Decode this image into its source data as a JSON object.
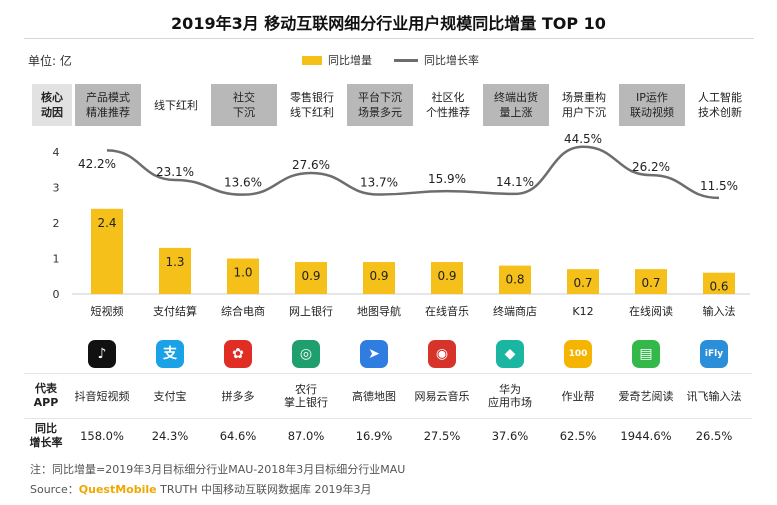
{
  "title": "2019年3月 移动互联网细分行业用户规模同比增量 TOP 10",
  "unit": "单位: 亿",
  "legend": {
    "bar": "同比增量",
    "line": "同比增长率"
  },
  "driver_header": "核心\n动因",
  "drivers": [
    {
      "text": "产品模式\n精准推荐",
      "shaded": true
    },
    {
      "text": "线下红利",
      "shaded": false
    },
    {
      "text": "社交\n下沉",
      "shaded": true
    },
    {
      "text": "零售银行\n线下红利",
      "shaded": false
    },
    {
      "text": "平台下沉\n场景多元",
      "shaded": true
    },
    {
      "text": "社区化\n个性推荐",
      "shaded": false
    },
    {
      "text": "终端出货\n量上涨",
      "shaded": true
    },
    {
      "text": "场景重构\n用户下沉",
      "shaded": false
    },
    {
      "text": "IP运作\n联动视频",
      "shaded": true
    },
    {
      "text": "人工智能\n技术创新",
      "shaded": false
    }
  ],
  "chart_data": {
    "type": "bar",
    "categories": [
      "短视频",
      "支付结算",
      "综合电商",
      "网上银行",
      "地图导航",
      "在线音乐",
      "终端商店",
      "K12",
      "在线阅读",
      "输入法"
    ],
    "series": [
      {
        "name": "同比增量",
        "type": "bar",
        "values": [
          2.4,
          1.3,
          1.0,
          0.9,
          0.9,
          0.9,
          0.8,
          0.7,
          0.7,
          0.6
        ],
        "labels": [
          "2.4",
          "1.3",
          "1.0",
          "0.9",
          "0.9",
          "0.9",
          "0.8",
          "0.7",
          "0.7",
          "0.6"
        ]
      },
      {
        "name": "同比增长率",
        "type": "line",
        "values": [
          42.2,
          23.1,
          13.6,
          27.6,
          13.7,
          15.9,
          14.1,
          44.5,
          26.2,
          11.5
        ],
        "labels": [
          "42.2%",
          "23.1%",
          "13.6%",
          "27.6%",
          "13.7%",
          "15.9%",
          "14.1%",
          "44.5%",
          "26.2%",
          "11.5%"
        ]
      }
    ],
    "yticks": [
      "0",
      "1",
      "2",
      "3",
      "4"
    ],
    "ylim": [
      0,
      4
    ],
    "colors": {
      "bar": "#f6c01b",
      "line": "#6d6d6d"
    }
  },
  "apps_header": "代表\nAPP",
  "growth_header": "同比\n增长率",
  "apps": [
    {
      "icon": "tiktok-icon",
      "glyph": "♪",
      "bg": "#111111",
      "name": "抖音短视频",
      "growth": "158.0%"
    },
    {
      "icon": "alipay-icon",
      "glyph": "支",
      "bg": "#1aa1e6",
      "name": "支付宝",
      "growth": "24.3%"
    },
    {
      "icon": "pinduoduo-icon",
      "glyph": "✿",
      "bg": "#e02e24",
      "name": "拼多多",
      "growth": "64.6%"
    },
    {
      "icon": "abc-bank-icon",
      "glyph": "◎",
      "bg": "#1f9e6e",
      "name": "农行\n掌上银行",
      "growth": "87.0%"
    },
    {
      "icon": "amap-icon",
      "glyph": "➤",
      "bg": "#2f7de1",
      "name": "高德地图",
      "growth": "16.9%"
    },
    {
      "icon": "netease-music-icon",
      "glyph": "◉",
      "bg": "#d6332a",
      "name": "网易云音乐",
      "growth": "27.5%"
    },
    {
      "icon": "huawei-appgallery-icon",
      "glyph": "◆",
      "bg": "#1ab6a1",
      "name": "华为\n应用市场",
      "growth": "37.6%"
    },
    {
      "icon": "zuoyebang-icon",
      "glyph": "100",
      "bg": "#f4b400",
      "name": "作业帮",
      "growth": "62.5%"
    },
    {
      "icon": "iqiyi-reader-icon",
      "glyph": "▤",
      "bg": "#35b84a",
      "name": "爱奇艺阅读",
      "growth": "1944.6%"
    },
    {
      "icon": "iflytek-input-icon",
      "glyph": "iFly",
      "bg": "#2a8fd8",
      "name": "讯飞输入法",
      "growth": "26.5%"
    }
  ],
  "note": "注：同比增量=2019年3月目标细分行业MAU-2018年3月目标细分行业MAU",
  "source_prefix": "Source：",
  "source_brand": "QuestMobile",
  "source_rest": " TRUTH 中国移动互联网数据库 2019年3月"
}
